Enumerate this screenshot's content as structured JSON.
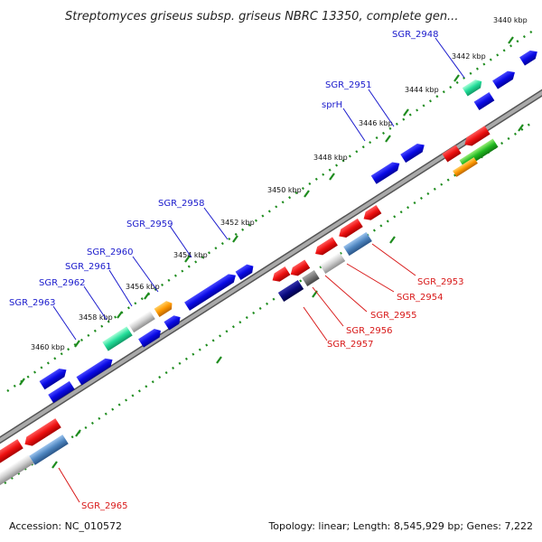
{
  "title": "Streptomyces griseus subsp. griseus NBRC 13350, complete gen...",
  "footer": {
    "accession": "Accession: NC_010572",
    "summary": "Topology: linear; Length: 8,545,929 bp; Genes: 7,222"
  },
  "colors": {
    "forward_label": "#1a1acc",
    "reverse_label": "#d81818",
    "backbone": "#8c8c8c",
    "ruler": "#1e8c1e",
    "gene_blue": "#0a0ae6",
    "gene_red": "#ee1111",
    "gene_teal": "#22dd99",
    "gene_orange": "#ff9900",
    "gene_silver": "#cfcfcf",
    "gene_steel": "#4f86c0",
    "gene_navy": "#0a0a80",
    "gene_gray": "#777777",
    "gene_green": "#22bb22"
  },
  "kbp_ticks": [
    "3440 kbp",
    "3442 kbp",
    "3444 kbp",
    "3446 kbp",
    "3448 kbp",
    "3450 kbp",
    "3452 kbp",
    "3454 kbp",
    "3456 kbp",
    "3458 kbp",
    "3460 kbp"
  ],
  "forward_genes": [
    "SGR_2948",
    "SGR_2951",
    "sprH",
    "SGR_2958",
    "SGR_2959",
    "SGR_2960",
    "SGR_2961",
    "SGR_2962",
    "SGR_2963"
  ],
  "reverse_genes": [
    "SGR_2953",
    "SGR_2954",
    "SGR_2955",
    "SGR_2956",
    "SGR_2957",
    "SGR_2965"
  ]
}
